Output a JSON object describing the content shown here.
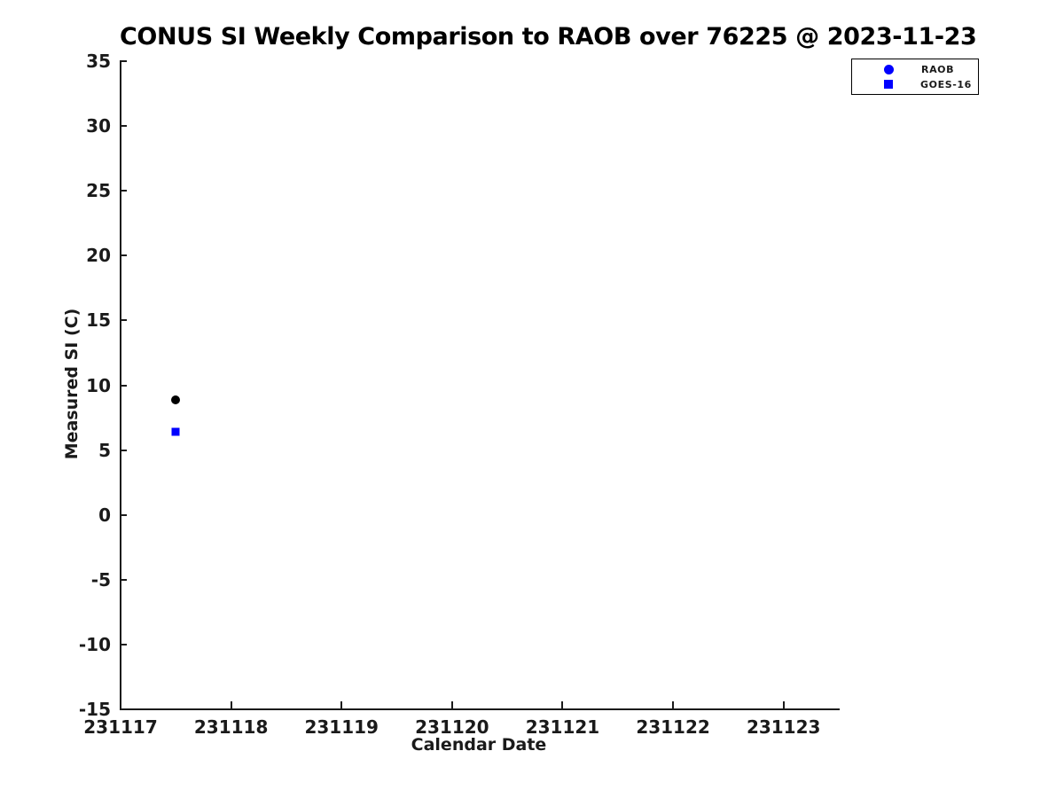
{
  "figure": {
    "background": "#ffffff"
  },
  "chart_data": {
    "type": "scatter",
    "title": "CONUS SI Weekly Comparison to RAOB over 76225 @ 2023-11-23",
    "xlabel": "Calendar Date",
    "ylabel": "Measured SI (C)",
    "xlim": [
      231117,
      231123.5
    ],
    "ylim": [
      -15,
      35
    ],
    "x_ticks": [
      231117,
      231118,
      231119,
      231120,
      231121,
      231122,
      231123
    ],
    "y_ticks": [
      -15,
      -10,
      -5,
      0,
      5,
      10,
      15,
      20,
      25,
      30,
      35
    ],
    "grid": false,
    "axis_color": "#1a1a1a",
    "legend": {
      "position": "top-right",
      "border_color": "#000000"
    },
    "series": [
      {
        "name": "RAOB",
        "marker": "circle",
        "plot_marker_color": "#000000",
        "legend_marker_color": "#0000ff",
        "points": [
          {
            "x": 231117.5,
            "y": 8.9
          }
        ]
      },
      {
        "name": "GOES-16",
        "marker": "square",
        "plot_marker_color": "#0000ff",
        "legend_marker_color": "#0000ff",
        "points": [
          {
            "x": 231117.5,
            "y": 6.4
          }
        ]
      }
    ]
  }
}
